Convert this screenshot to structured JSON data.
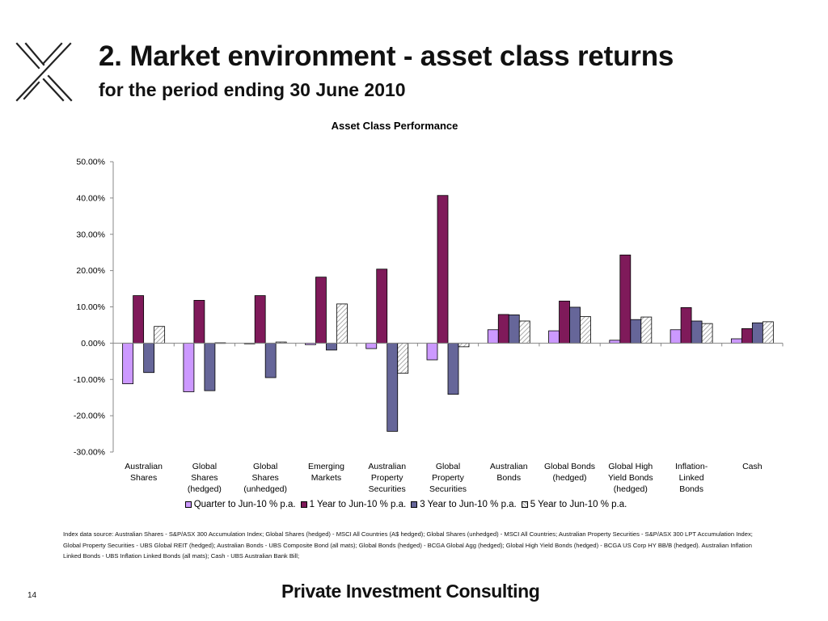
{
  "header": {
    "title": "2. Market environment - asset class returns",
    "subtitle": "for the period ending 30 June 2010"
  },
  "logo": {
    "icon": "x-logo-icon"
  },
  "chart_data": {
    "type": "bar",
    "title": "Asset Class Performance",
    "xlabel": "",
    "ylabel": "",
    "ylim": [
      -30,
      50
    ],
    "y_ticks": [
      "50.00%",
      "40.00%",
      "30.00%",
      "20.00%",
      "10.00%",
      "0.00%",
      "-10.00%",
      "-20.00%",
      "-30.00%"
    ],
    "grid": false,
    "legend_position": "bottom",
    "categories": [
      "Australian\nShares",
      "Global\nShares\n(hedged)",
      "Global\nShares\n(unhedged)",
      "Emerging\nMarkets",
      "Australian\nProperty\nSecurities",
      "Global\nProperty\nSecurities",
      "Australian\nBonds",
      "Global Bonds\n(hedged)",
      "Global High\nYield Bonds\n(hedged)",
      "Inflation-\nLinked\nBonds",
      "Cash"
    ],
    "series": [
      {
        "name": "Quarter to Jun-10 % p.a.",
        "color": "#cc99ff",
        "pattern": "solid",
        "values": [
          -11.2,
          -13.4,
          -0.1,
          -0.4,
          -1.5,
          -4.6,
          3.7,
          3.4,
          0.8,
          3.7,
          1.2
        ]
      },
      {
        "name": "1 Year to Jun-10 % p.a.",
        "color": "#7f1a5a",
        "pattern": "solid",
        "values": [
          13.1,
          11.8,
          13.1,
          18.2,
          20.4,
          40.7,
          7.9,
          11.6,
          24.3,
          9.8,
          4.0
        ]
      },
      {
        "name": "3 Year to Jun-10 % p.a.",
        "color": "#666699",
        "pattern": "solid",
        "values": [
          -8.1,
          -13.1,
          -9.5,
          -1.9,
          -24.3,
          -14.1,
          7.8,
          9.9,
          6.5,
          6.1,
          5.6
        ]
      },
      {
        "name": "5 Year to Jun-10 % p.a.",
        "color": "#ffffff",
        "pattern": "hatch",
        "values": [
          4.6,
          0.1,
          0.3,
          10.8,
          -8.3,
          -1.0,
          6.1,
          7.3,
          7.2,
          5.4,
          5.9
        ]
      }
    ]
  },
  "footnote": "Index data source: Australian Shares - S&P/ASX 300 Accumulation Index; Global Shares (hedged) - MSCI All Countries (A$ hedged); Global Shares (unhedged) - MSCI All Countries; Australian Property Securities - S&P/ASX 300 LPT Accumulation Index; Global Property Securities - UBS Global REIT (hedged); Australian Bonds - UBS Composite Bond (all mats); Global Bonds (hedged) - BCGA Global Agg (hedged); Global High Yield Bonds (hedged) - BCGA US Corp HY BB/B (hedged). Australian Inflation Linked Bonds - UBS Inflation Linked Bonds (all mats); Cash - UBS Australian Bank Bill;",
  "page_number": "14",
  "brand": "Private Investment Consulting"
}
